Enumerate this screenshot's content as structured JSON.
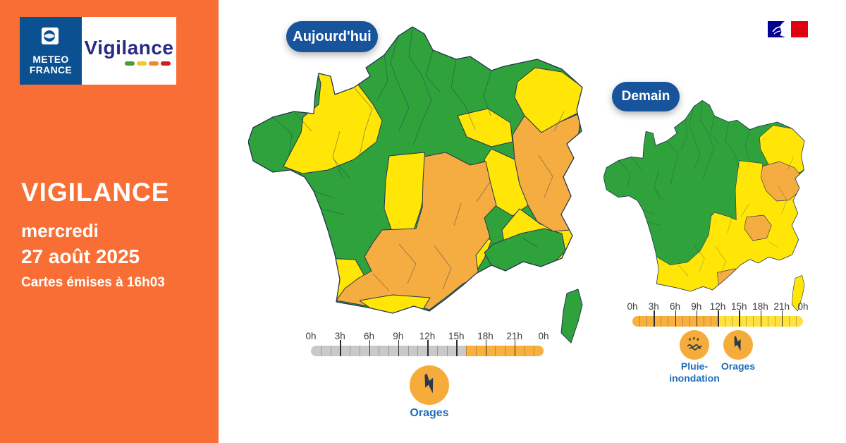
{
  "colors": {
    "sidebar": "#F86E34",
    "green": "#2FA23C",
    "yellow": "#FFE606",
    "orange": "#F5AD41",
    "badge_blue": "#17549B",
    "label_blue": "#1D6EB8",
    "logo_navy": "#0B5091",
    "vigilance_ink": "#2A2A85",
    "icon_orange": "#F6AC3B",
    "glyph_navy": "#2B3A4A",
    "timeline_gray": "#C9C9C9",
    "timeline_orange": "#F9B13E",
    "timeline_yellow": "#FFE33C",
    "flag_blue": "#000091",
    "flag_red": "#E1000F"
  },
  "sidebar": {
    "brand_line1": "METEO",
    "brand_line2": "FRANCE",
    "product": "Vigilance",
    "title": "VIGILANCE",
    "weekday": "mercredi",
    "date": "27 août 2025",
    "issued": "Cartes émises à 16h03"
  },
  "legend": {
    "dash_colors": [
      "#4B9B33",
      "#EFC927",
      "#ED8733",
      "#D01D1D"
    ]
  },
  "today": {
    "badge": "Aujourd'hui",
    "timeline": {
      "hours_total": 24,
      "tick_labels": [
        "0h",
        "3h",
        "6h",
        "9h",
        "12h",
        "15h",
        "18h",
        "21h",
        "0h"
      ],
      "segments": [
        {
          "start": 0,
          "end": 16,
          "color": "#C9C9C9"
        },
        {
          "start": 16,
          "end": 24,
          "color": "#F9B13E"
        }
      ]
    },
    "icons": [
      {
        "glyph": "thunder-icon",
        "lines": [
          "Orages"
        ]
      }
    ]
  },
  "tomorrow": {
    "badge": "Demain",
    "timeline": {
      "hours_total": 24,
      "tick_labels": [
        "0h",
        "3h",
        "6h",
        "9h",
        "12h",
        "15h",
        "18h",
        "21h",
        "0h"
      ],
      "segments": [
        {
          "start": 0,
          "end": 12,
          "color": "#F9B13E"
        },
        {
          "start": 12,
          "end": 24,
          "color": "#FFE33C"
        }
      ]
    },
    "icons": [
      {
        "glyph": "rain-flood-icon",
        "lines": [
          "Pluie-",
          "inondation"
        ]
      },
      {
        "glyph": "thunder-icon",
        "lines": [
          "Orages"
        ]
      }
    ]
  }
}
